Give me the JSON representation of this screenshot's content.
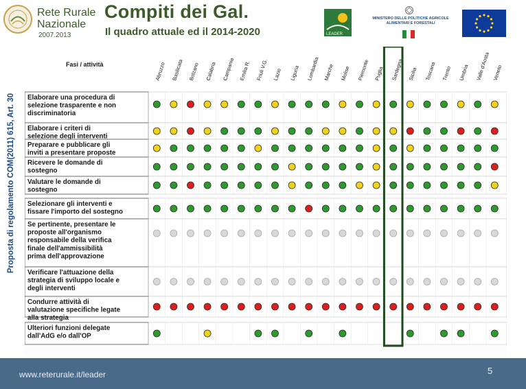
{
  "header": {
    "logo_line1": "Rete Rurale",
    "logo_line2": "Nazionale",
    "logo_years": "2007.2013",
    "title": "Compiti dei Gal.",
    "subtitle": "Il quadro attuale ed il 2014-2020",
    "leader_text": "LEADER",
    "ministry_text": "MINISTERO DELLE POLITICHE AGRICOLE ALIMENTARI E FORESTALI"
  },
  "side_label": "Proposta di regolamento COM(2011) 615, Art. 30",
  "table": {
    "corner_header": "Fasi / attività",
    "columns": [
      "Abruzzo",
      "Basilicata",
      "Bolzano",
      "Calabria",
      "Campania",
      "Emilia R.",
      "Friuli V.G.",
      "Lazio",
      "Liguria",
      "Lombardia",
      "Marche",
      "Molise",
      "Piemonte",
      "Puglia",
      "Sardegna",
      "Sicilia",
      "Toscana",
      "Trento",
      "Umbria",
      "Valle d'Aosta",
      "Veneto"
    ],
    "highlight_column": 14,
    "rows": [
      {
        "label": "Elaborare una procedura di selezione trasparente e non discriminatoria",
        "dots": [
          "green",
          "yellow",
          "red",
          "yellow",
          "yellow",
          "green",
          "green",
          "yellow",
          "green",
          "green",
          "green",
          "yellow",
          "green",
          "yellow",
          "green",
          "yellow",
          "green",
          "green",
          "yellow",
          "green",
          "yellow"
        ]
      },
      {
        "label": "Elaborare i criteri di selezione degli interventi",
        "dots": [
          "yellow",
          "yellow",
          "red",
          "yellow",
          "green",
          "green",
          "green",
          "yellow",
          "green",
          "green",
          "yellow",
          "yellow",
          "green",
          "yellow",
          "yellow",
          "red",
          "green",
          "green",
          "red",
          "green",
          "red"
        ]
      },
      {
        "label": "Preparare e pubblicare gli inviti a presentare proposte",
        "dots": [
          "yellow",
          "green",
          "green",
          "green",
          "green",
          "green",
          "yellow",
          "green",
          "green",
          "green",
          "green",
          "green",
          "green",
          "yellow",
          "green",
          "yellow",
          "green",
          "green",
          "green",
          "green",
          "green"
        ]
      },
      {
        "label": "Ricevere le domande di sostegno",
        "dots": [
          "green",
          "green",
          "green",
          "green",
          "green",
          "green",
          "green",
          "green",
          "yellow",
          "green",
          "green",
          "green",
          "green",
          "yellow",
          "green",
          "green",
          "green",
          "green",
          "green",
          "green",
          "red"
        ]
      },
      {
        "label": "Valutare le domande di sostegno",
        "dots": [
          "green",
          "green",
          "red",
          "green",
          "green",
          "green",
          "green",
          "green",
          "yellow",
          "green",
          "green",
          "green",
          "yellow",
          "yellow",
          "green",
          "green",
          "green",
          "green",
          "green",
          "green",
          "yellow"
        ]
      },
      {
        "label": "Selezionare gli interventi e fissare l'importo del sostegno",
        "dots": [
          "green",
          "green",
          "green",
          "green",
          "green",
          "green",
          "green",
          "green",
          "green",
          "red",
          "green",
          "green",
          "green",
          "green",
          "green",
          "green",
          "green",
          "green",
          "green",
          "green",
          "green"
        ]
      },
      {
        "label": "Se pertinente, presentare le proposte all'organismo responsabile della verifica finale dell'ammissibilità prima dell'approvazione",
        "dots": [
          "gray",
          "gray",
          "gray",
          "gray",
          "gray",
          "gray",
          "gray",
          "gray",
          "gray",
          "gray",
          "gray",
          "gray",
          "gray",
          "gray",
          "gray",
          "gray",
          "gray",
          "gray",
          "gray",
          "gray",
          "gray"
        ]
      },
      {
        "label": "Verificare l'attuazione della strategia di sviluppo locale e degli interventi",
        "dots": [
          "gray",
          "gray",
          "gray",
          "gray",
          "gray",
          "gray",
          "gray",
          "gray",
          "gray",
          "gray",
          "gray",
          "gray",
          "gray",
          "gray",
          "gray",
          "gray",
          "gray",
          "gray",
          "gray",
          "gray",
          "gray"
        ]
      },
      {
        "label": "Condurre attività di valutazione specifiche legate alla strategia",
        "dots": [
          "red",
          "red",
          "red",
          "red",
          "red",
          "red",
          "red",
          "red",
          "red",
          "red",
          "red",
          "red",
          "red",
          "red",
          "red",
          "red",
          "red",
          "red",
          "red",
          "red",
          "red"
        ]
      },
      {
        "label": "Ulteriori funzioni delegate dall'AdG e/o dall'OP",
        "dots": [
          "green",
          "",
          "",
          "yellow",
          "",
          "",
          "green",
          "green",
          "",
          "green",
          "",
          "green",
          "",
          "",
          "",
          "green",
          "",
          "green",
          "green",
          "",
          "green"
        ]
      }
    ]
  },
  "colors": {
    "green": "#2e9a2e",
    "yellow": "#f0d21c",
    "red": "#dc1e1e",
    "gray": "#d8d8d8",
    "highlight": "#1e4a1e",
    "grid": "#c8c8c8",
    "text": "#1a1a1a"
  },
  "footer": {
    "url": "www.reterurale.it/leader",
    "page": "5"
  }
}
